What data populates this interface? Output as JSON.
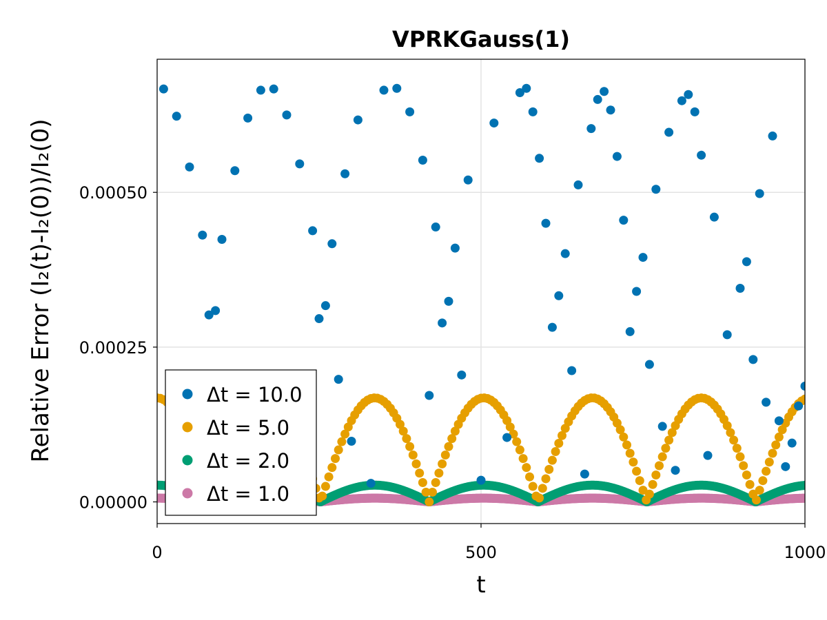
{
  "chart_data": {
    "type": "scatter",
    "title": "VPRKGauss(1)",
    "xlabel": "t",
    "ylabel": "Relative Error (I₂(t)-I₂(0))/I₂(0)",
    "xlim": [
      0,
      1000
    ],
    "ylim": [
      -3.5e-05,
      0.000715
    ],
    "xticks": [
      0,
      500,
      1000
    ],
    "xtick_labels": [
      "0",
      "500",
      "1000"
    ],
    "yticks": [
      0.0,
      0.00025,
      0.0005
    ],
    "ytick_labels": [
      "0.00000",
      "0.00025",
      "0.00050"
    ],
    "grid": true,
    "legend_position": "bottom-left",
    "series": [
      {
        "name": "Δt = 10.0",
        "color": "#0072b2",
        "x": [
          10,
          30,
          50,
          70,
          80,
          90,
          100,
          120,
          140,
          160,
          180,
          200,
          220,
          240,
          250,
          260,
          270,
          280,
          290,
          300,
          310,
          330,
          350,
          370,
          390,
          410,
          420,
          430,
          440,
          450,
          460,
          470,
          480,
          500,
          520,
          540,
          560,
          570,
          580,
          590,
          600,
          610,
          620,
          630,
          640,
          650,
          660,
          670,
          680,
          690,
          700,
          710,
          720,
          730,
          740,
          750,
          760,
          770,
          780,
          790,
          800,
          810,
          820,
          830,
          840,
          850,
          860,
          880,
          900,
          910,
          920,
          930,
          940,
          950,
          960,
          970,
          980,
          990,
          1000
        ],
        "y": [
          0.000667,
          0.000623,
          0.000541,
          0.000431,
          0.000302,
          0.000309,
          0.000424,
          0.000535,
          0.00062,
          0.000665,
          0.000667,
          0.000625,
          0.000546,
          0.000438,
          0.000296,
          0.000317,
          0.000417,
          0.000198,
          0.00053,
          9.8e-05,
          0.000617,
          3e-05,
          0.000665,
          0.000668,
          0.00063,
          0.000552,
          0.000172,
          0.000444,
          0.000289,
          0.000324,
          0.00041,
          0.000205,
          0.00052,
          3.5e-05,
          0.000612,
          0.000104,
          0.000661,
          0.000668,
          0.00063,
          0.000555,
          0.00045,
          0.000282,
          0.000333,
          0.000401,
          0.000212,
          0.000512,
          4.5e-05,
          0.000603,
          0.00065,
          0.000663,
          0.000633,
          0.000558,
          0.000455,
          0.000275,
          0.00034,
          0.000395,
          0.000222,
          0.000505,
          0.000122,
          0.000597,
          5.1e-05,
          0.000648,
          0.000658,
          0.00063,
          0.00056,
          7.5e-05,
          0.00046,
          0.00027,
          0.000345,
          0.000388,
          0.00023,
          0.000498,
          0.000161,
          0.000591,
          0.000131,
          5.7e-05,
          9.5e-05,
          0.000155,
          0.000187
        ]
      },
      {
        "name": "Δt = 5.0",
        "color": "#e69f00",
        "wave": {
          "x_step": 5,
          "period": 168,
          "amplitude": 0.000168,
          "phase_deg": 0
        }
      },
      {
        "name": "Δt = 2.0",
        "color": "#009e73",
        "wave": {
          "x_step": 2,
          "period": 168,
          "amplitude": 2.7e-05,
          "phase_deg": 0
        }
      },
      {
        "name": "Δt = 1.0",
        "color": "#cc79a7",
        "wave": {
          "x_step": 1,
          "period": 168,
          "amplitude": 6e-06,
          "phase_deg": 0
        }
      }
    ]
  }
}
